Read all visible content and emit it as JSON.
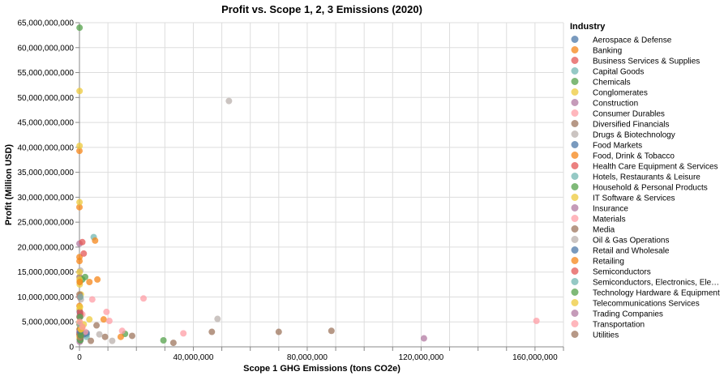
{
  "chart_data": {
    "type": "scatter",
    "title": "Profit vs. Scope 1, 2, 3 Emissions (2020)",
    "xlabel": "Scope 1 GHG Emissions (tons CO2e)",
    "ylabel": "Profit (Million USD)",
    "xlim": [
      0,
      170000000
    ],
    "ylim": [
      0,
      65000000000
    ],
    "x_ticks": [
      0,
      40000000,
      80000000,
      120000000,
      160000000
    ],
    "x_tick_labels": [
      "0",
      "40,000,000",
      "80,000,000",
      "120,000,000",
      "160,000,000"
    ],
    "y_ticks": [
      0,
      5000000000,
      10000000000,
      15000000000,
      20000000000,
      25000000000,
      30000000000,
      35000000000,
      40000000000,
      45000000000,
      50000000000,
      55000000000,
      60000000000,
      65000000000
    ],
    "y_tick_labels": [
      "0",
      "5,000,000,000",
      "10,000,000,000",
      "15,000,000,000",
      "20,000,000,000",
      "25,000,000,000",
      "30,000,000,000",
      "35,000,000,000",
      "40,000,000,000",
      "45,000,000,000",
      "50,000,000,000",
      "55,000,000,000",
      "60,000,000,000",
      "65,000,000,000"
    ],
    "grid": true,
    "legend_title": "Industry",
    "legend_position": "right",
    "series": [
      {
        "name": "Aerospace & Defense",
        "color": "#4c78a8",
        "points": [
          [
            1000000,
            3000000000
          ],
          [
            2500000,
            2500000000
          ],
          [
            200000,
            1500000000
          ]
        ]
      },
      {
        "name": "Banking",
        "color": "#f58518",
        "points": [
          [
            5000,
            39300000000
          ],
          [
            5000,
            28000000000
          ],
          [
            10000,
            18000000000
          ],
          [
            20000,
            17200000000
          ],
          [
            10000,
            8200000000
          ],
          [
            15000,
            6000000000
          ],
          [
            10000,
            4500000000
          ],
          [
            30000,
            3500000000
          ],
          [
            20000,
            2500000000
          ]
        ]
      },
      {
        "name": "Business Services & Supplies",
        "color": "#e45756",
        "points": [
          [
            1500000,
            18700000000
          ],
          [
            200000,
            6500000000
          ],
          [
            100000,
            2200000000
          ],
          [
            300000,
            1300000000
          ]
        ]
      },
      {
        "name": "Capital Goods",
        "color": "#72b7b2",
        "points": [
          [
            5000000,
            22000000000
          ],
          [
            1000000,
            3000000000
          ],
          [
            2500000,
            2000000000
          ]
        ]
      },
      {
        "name": "Chemicals",
        "color": "#54a24b",
        "points": [
          [
            29500000,
            1300000000
          ],
          [
            16000000,
            2600000000
          ],
          [
            100000,
            1500000000
          ]
        ]
      },
      {
        "name": "Conglomerates",
        "color": "#eeca3b",
        "points": [
          [
            500000,
            10500000000
          ],
          [
            3500000,
            5500000000
          ]
        ]
      },
      {
        "name": "Construction",
        "color": "#b279a2",
        "points": [
          [
            100000,
            1000000000
          ],
          [
            300000,
            2000000000
          ]
        ]
      },
      {
        "name": "Consumer Durables",
        "color": "#ff9da6",
        "points": [
          [
            4500000,
            9500000000
          ],
          [
            1000000,
            6500000000
          ],
          [
            700000,
            2200000000
          ]
        ]
      },
      {
        "name": "Diversified Financials",
        "color": "#9d755d",
        "points": [
          [
            50000,
            14000000000
          ],
          [
            30000,
            10500000000
          ],
          [
            100000,
            3500000000
          ],
          [
            30000,
            2800000000
          ]
        ]
      },
      {
        "name": "Drugs & Biotechnology",
        "color": "#bab0ac",
        "points": [
          [
            300000,
            15300000000
          ],
          [
            100000,
            13000000000
          ],
          [
            500000,
            9500000000
          ],
          [
            300000,
            6000000000
          ],
          [
            200000,
            3000000000
          ]
        ]
      },
      {
        "name": "Food Markets",
        "color": "#4c78a8",
        "points": [
          [
            2500000,
            2800000000
          ],
          [
            1500000,
            2500000000
          ]
        ]
      },
      {
        "name": "Food, Drink & Tobacco",
        "color": "#f58518",
        "points": [
          [
            6300000,
            13500000000
          ],
          [
            3500000,
            13000000000
          ],
          [
            8500000,
            5500000000
          ],
          [
            14500000,
            2000000000
          ],
          [
            1000000,
            4000000000
          ]
        ]
      },
      {
        "name": "Health Care Equipment & Services",
        "color": "#e45756",
        "points": [
          [
            300000,
            6500000000
          ],
          [
            100000,
            2300000000
          ],
          [
            200000,
            1800000000
          ]
        ]
      },
      {
        "name": "Hotels, Restaurants & Leisure",
        "color": "#72b7b2",
        "points": [
          [
            400000,
            1500000000
          ]
        ]
      },
      {
        "name": "Household & Personal Products",
        "color": "#54a24b",
        "points": [
          [
            2000000,
            14000000000
          ],
          [
            1000000,
            13500000000
          ],
          [
            300000,
            1300000000
          ]
        ]
      },
      {
        "name": "IT Software & Services",
        "color": "#eeca3b",
        "points": [
          [
            50000,
            51300000000
          ],
          [
            50000,
            40300000000
          ],
          [
            30000,
            29000000000
          ],
          [
            50000,
            15000000000
          ],
          [
            20000,
            13500000000
          ],
          [
            100000,
            12500000000
          ],
          [
            30000,
            7500000000
          ],
          [
            50000,
            5000000000
          ],
          [
            20000,
            2000000000
          ]
        ]
      },
      {
        "name": "Insurance",
        "color": "#b279a2",
        "points": [
          [
            10000,
            20700000000
          ],
          [
            20000,
            6000000000
          ],
          [
            10000,
            3000000000
          ]
        ]
      },
      {
        "name": "Materials",
        "color": "#ff9da6",
        "points": [
          [
            160500000,
            5200000000
          ],
          [
            22500000,
            9700000000
          ],
          [
            9500000,
            7000000000
          ],
          [
            10500000,
            5200000000
          ],
          [
            15000000,
            3200000000
          ],
          [
            36500000,
            2700000000
          ],
          [
            2000000,
            3000000000
          ]
        ]
      },
      {
        "name": "Media",
        "color": "#9d755d",
        "points": [
          [
            100000,
            2500000000
          ],
          [
            300000,
            1800000000
          ]
        ]
      },
      {
        "name": "Oil & Gas Operations",
        "color": "#bab0ac",
        "points": [
          [
            52500000,
            49300000000
          ],
          [
            48500000,
            5600000000
          ],
          [
            7000000,
            2500000000
          ],
          [
            11500000,
            1200000000
          ]
        ]
      },
      {
        "name": "Retail and Wholesale",
        "color": "#4c78a8",
        "points": [
          [
            100000,
            7000000000
          ],
          [
            300000,
            3000000000
          ]
        ]
      },
      {
        "name": "Retailing",
        "color": "#f58518",
        "points": [
          [
            5500000,
            21300000000
          ],
          [
            100000,
            13000000000
          ],
          [
            500000,
            3500000000
          ]
        ]
      },
      {
        "name": "Semiconductors",
        "color": "#e45756",
        "points": [
          [
            1000000,
            21000000000
          ],
          [
            100000,
            10000000000
          ],
          [
            200000,
            7000000000
          ]
        ]
      },
      {
        "name": "Semiconductors, Electronics, Electrical Engineering",
        "color": "#72b7b2",
        "points": [
          [
            300000,
            10000000000
          ],
          [
            100000,
            4500000000
          ]
        ]
      },
      {
        "name": "Technology Hardware & Equipment",
        "color": "#54a24b",
        "points": [
          [
            50000,
            64000000000
          ],
          [
            200000,
            6000000000
          ],
          [
            500000,
            2300000000
          ]
        ]
      },
      {
        "name": "Telecommunications Services",
        "color": "#eeca3b",
        "points": [
          [
            200000,
            8000000000
          ],
          [
            1500000,
            4500000000
          ],
          [
            500000,
            3500000000
          ]
        ]
      },
      {
        "name": "Trading Companies",
        "color": "#b279a2",
        "points": [
          [
            121000000,
            1700000000
          ]
        ]
      },
      {
        "name": "Transportation",
        "color": "#ff9da6",
        "points": [
          [
            100000,
            5000000000
          ],
          [
            1000000,
            4000000000
          ]
        ]
      },
      {
        "name": "Utilities",
        "color": "#9d755d",
        "points": [
          [
            88500000,
            3200000000
          ],
          [
            70000000,
            3000000000
          ],
          [
            46500000,
            3000000000
          ],
          [
            33000000,
            800000000
          ],
          [
            18500000,
            2200000000
          ],
          [
            9000000,
            2000000000
          ],
          [
            6000000,
            4300000000
          ],
          [
            4000000,
            1200000000
          ]
        ]
      }
    ]
  },
  "legend_labels": [
    "Aerospace & Defense",
    "Banking",
    "Business Services & Supplies",
    "Capital Goods",
    "Chemicals",
    "Conglomerates",
    "Construction",
    "Consumer Durables",
    "Diversified Financials",
    "Drugs & Biotechnology",
    "Food Markets",
    "Food, Drink & Tobacco",
    "Health Care Equipment & Services",
    "Hotels, Restaurants & Leisure",
    "Household & Personal Products",
    "IT Software & Services",
    "Insurance",
    "Materials",
    "Media",
    "Oil & Gas Operations",
    "Retail and Wholesale",
    "Retailing",
    "Semiconductors",
    "Semiconductors, Electronics, Ele…",
    "Technology Hardware & Equipment",
    "Telecommunications Services",
    "Trading Companies",
    "Transportation",
    "Utilities"
  ]
}
